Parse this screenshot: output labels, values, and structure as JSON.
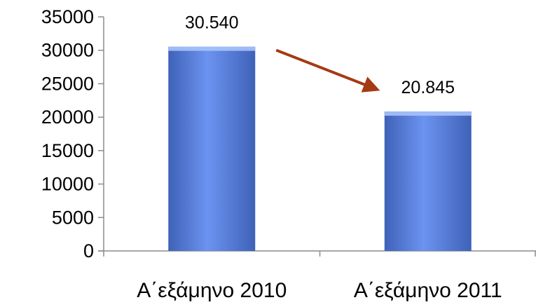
{
  "chart_data": {
    "type": "bar",
    "title": "",
    "xlabel": "",
    "ylabel": "",
    "categories": [
      "Α΄εξάμηνο 2010",
      "Α΄εξάμηνο 2011"
    ],
    "values": [
      30540,
      20845
    ],
    "data_labels": [
      "30.540",
      "20.845"
    ],
    "ylim": [
      0,
      35000
    ],
    "y_ticks": [
      0,
      5000,
      10000,
      15000,
      20000,
      25000,
      30000,
      35000
    ],
    "y_tick_labels": [
      "0",
      "5000",
      "10000",
      "15000",
      "20000",
      "25000",
      "30000",
      "35000"
    ],
    "grid": false,
    "legend": "none",
    "annotations": [
      {
        "type": "arrow",
        "from_category": 0,
        "to_category": 1,
        "meaning": "decrease"
      }
    ]
  },
  "colors": {
    "bar_fill": "#6b93f0",
    "bar_highlight": "#a9c2fa",
    "bar_shadow": "#3f62b8",
    "axis": "#8c8c8c",
    "arrow": "#a53a13"
  }
}
